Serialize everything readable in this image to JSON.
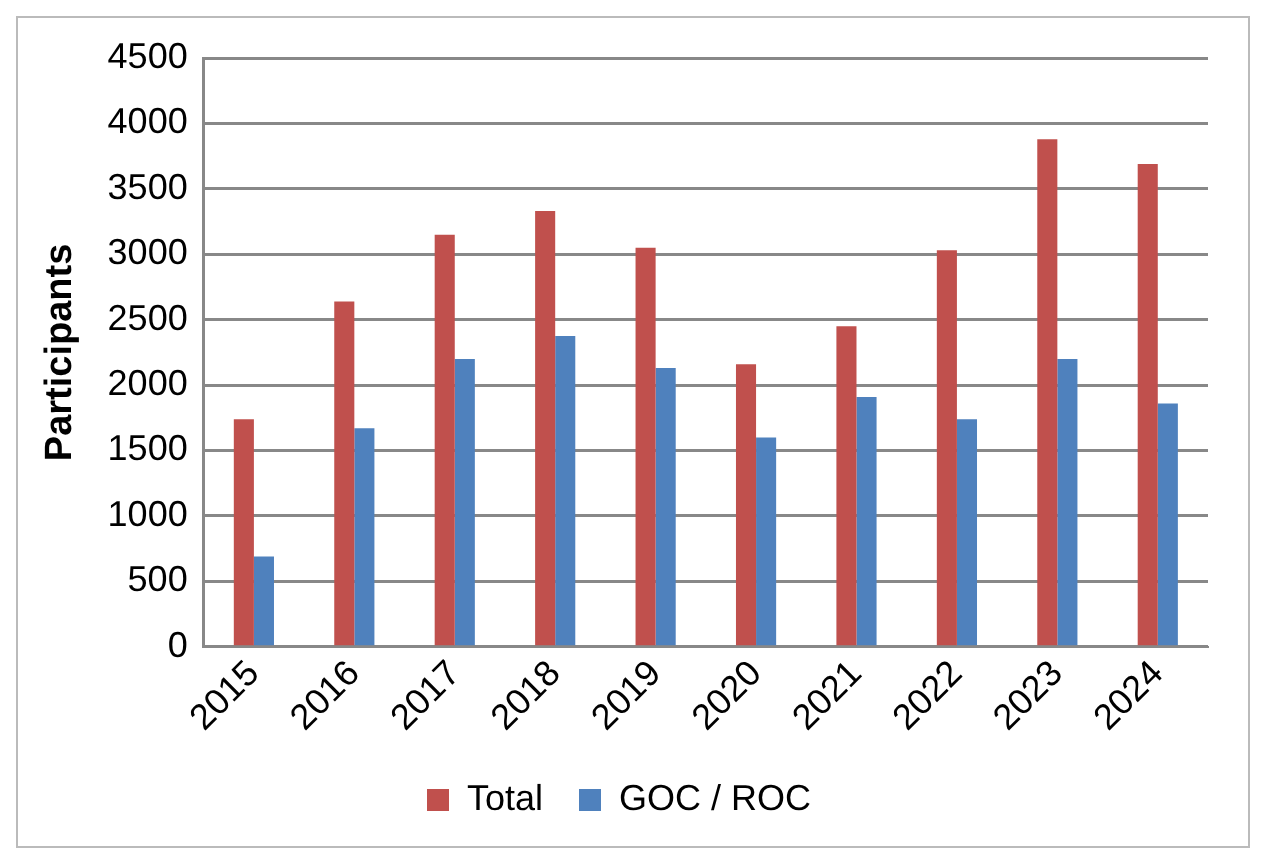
{
  "chart_data": {
    "type": "bar",
    "ylabel": "Participants",
    "categories": [
      "2015",
      "2016",
      "2017",
      "2018",
      "2019",
      "2020",
      "2021",
      "2022",
      "2023",
      "2024"
    ],
    "series": [
      {
        "name": "Total",
        "color": "#c0504d",
        "values": [
          1740,
          2640,
          3150,
          3330,
          3050,
          2160,
          2450,
          3030,
          3880,
          3690
        ]
      },
      {
        "name": "GOC / ROC",
        "color": "#4f81bd",
        "values": [
          690,
          1670,
          2200,
          2375,
          2130,
          1600,
          1910,
          1740,
          2200,
          1860
        ]
      }
    ],
    "ylim": [
      0,
      4500
    ],
    "yticks": [
      0,
      500,
      1000,
      1500,
      2000,
      2500,
      3000,
      3500,
      4000,
      4500
    ],
    "grid": "y",
    "legend": "bottom"
  }
}
